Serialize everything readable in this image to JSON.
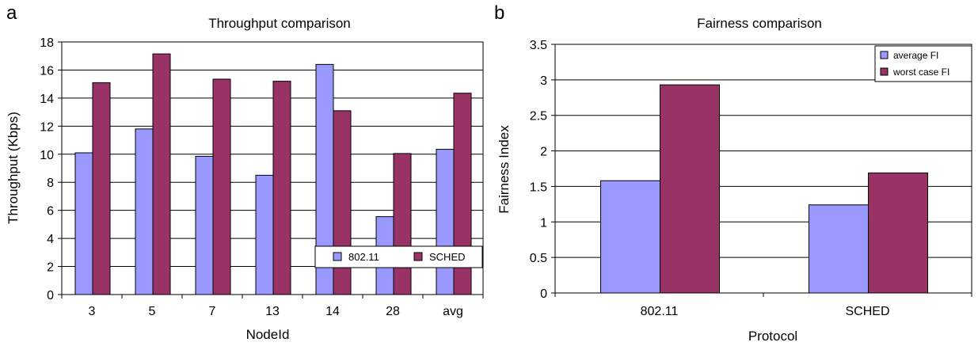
{
  "panels": {
    "a": {
      "letter": "a"
    },
    "b": {
      "letter": "b"
    }
  },
  "colors": {
    "series1": "#9999ff",
    "series2": "#993366",
    "border": "#000000",
    "grid": "#000000"
  },
  "chart_data": [
    {
      "type": "bar",
      "title": "Throughput comparison",
      "xlabel": "NodeId",
      "ylabel": "Throughput (Kbps)",
      "categories": [
        "3",
        "5",
        "7",
        "13",
        "14",
        "28",
        "avg"
      ],
      "ylim": [
        0,
        18
      ],
      "yticks": [
        "0",
        "2",
        "4",
        "6",
        "8",
        "10",
        "12",
        "14",
        "16",
        "18"
      ],
      "grid": true,
      "legend": "bottom-right",
      "series": [
        {
          "name": "802.11",
          "values": [
            10.1,
            11.8,
            9.85,
            8.5,
            16.4,
            5.55,
            10.35
          ]
        },
        {
          "name": "SCHED",
          "values": [
            15.1,
            17.15,
            15.35,
            15.2,
            13.1,
            10.05,
            14.35
          ]
        }
      ]
    },
    {
      "type": "bar",
      "title": "Fairness comparison",
      "xlabel": "Protocol",
      "ylabel": "Fairness Index",
      "categories": [
        "802.11",
        "SCHED"
      ],
      "ylim": [
        0,
        3.5
      ],
      "yticks": [
        "0",
        "0.5",
        "1",
        "1.5",
        "2",
        "2.5",
        "3",
        "3.5"
      ],
      "grid": true,
      "legend": "top-right",
      "series": [
        {
          "name": "average FI",
          "values": [
            1.58,
            1.24
          ]
        },
        {
          "name": "worst case FI",
          "values": [
            2.93,
            1.69
          ]
        }
      ]
    }
  ]
}
